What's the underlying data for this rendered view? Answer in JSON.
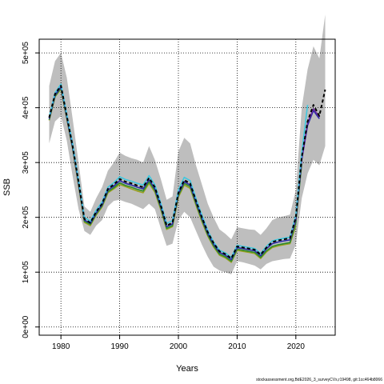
{
  "chart_data": {
    "type": "line",
    "xlabel": "Years",
    "ylabel": "SSB",
    "xlim": [
      1976.3,
      2026.7
    ],
    "ylim": [
      -15000,
      525000
    ],
    "grid": true,
    "x_ticks": [
      1980,
      1990,
      2000,
      2010,
      2020
    ],
    "y_ticks": [
      0,
      100000,
      200000,
      300000,
      400000,
      500000
    ],
    "y_tick_labels": [
      "0e+00",
      "1e+05",
      "2e+05",
      "3e+05",
      "4e+05",
      "5e+05"
    ],
    "colors": {
      "band": "#bebebe",
      "black_dashed": "#000000",
      "blue": "#2a2aa8",
      "green": "#2e8b2e",
      "cyan": "#3ec8e0",
      "olive": "#9aa020",
      "red": "#cc2222",
      "purple": "#6a2aa0"
    },
    "band": {
      "x": [
        1978,
        1979,
        1980,
        1981,
        1982,
        1983,
        1984,
        1985,
        1986,
        1987,
        1988,
        1989,
        1990,
        1991,
        1992,
        1993,
        1994,
        1995,
        1996,
        1997,
        1998,
        1999,
        2000,
        2001,
        2002,
        2003,
        2004,
        2005,
        2006,
        2007,
        2008,
        2009,
        2010,
        2011,
        2012,
        2013,
        2014,
        2015,
        2016,
        2017,
        2018,
        2019,
        2020,
        2021,
        2022,
        2023,
        2024,
        2025
      ],
      "upper": [
        440000,
        485000,
        500000,
        455000,
        380000,
        300000,
        220000,
        210000,
        235000,
        255000,
        285000,
        300000,
        318000,
        312000,
        308000,
        305000,
        300000,
        330000,
        305000,
        270000,
        232000,
        238000,
        320000,
        345000,
        335000,
        295000,
        260000,
        225000,
        200000,
        178000,
        170000,
        160000,
        182000,
        180000,
        178000,
        177000,
        168000,
        180000,
        195000,
        200000,
        202000,
        205000,
        250000,
        400000,
        470000,
        512000,
        490000,
        570000
      ],
      "lower": [
        335000,
        375000,
        385000,
        340000,
        275000,
        215000,
        175000,
        168000,
        185000,
        195000,
        220000,
        230000,
        232000,
        228000,
        225000,
        220000,
        215000,
        225000,
        215000,
        180000,
        148000,
        152000,
        195000,
        210000,
        200000,
        175000,
        150000,
        128000,
        110000,
        103000,
        100000,
        96000,
        120000,
        118000,
        115000,
        112000,
        105000,
        115000,
        120000,
        122000,
        124000,
        125000,
        150000,
        235000,
        280000,
        305000,
        295000,
        330000
      ]
    },
    "series": [
      {
        "name": "",
        "color": "#000000",
        "dashed": true,
        "x": [
          1978,
          1979,
          1980,
          1981,
          1982,
          1983,
          1984,
          1985,
          1986,
          1987,
          1988,
          1989,
          1990,
          1991,
          1992,
          1993,
          1994,
          1995,
          1996,
          1997,
          1998,
          1999,
          2000,
          2001,
          2002,
          2003,
          2004,
          2005,
          2006,
          2007,
          2008,
          2009,
          2010,
          2011,
          2012,
          2013,
          2014,
          2015,
          2016,
          2017,
          2018,
          2019,
          2020,
          2021,
          2022,
          2023,
          2024,
          2025
        ],
        "y": [
          382000,
          425000,
          440000,
          385000,
          330000,
          265000,
          197000,
          190000,
          210000,
          225000,
          252000,
          260000,
          270000,
          265000,
          262000,
          258000,
          255000,
          272000,
          255000,
          222000,
          185000,
          190000,
          245000,
          268000,
          262000,
          230000,
          200000,
          173000,
          153000,
          138000,
          133000,
          125000,
          147000,
          145000,
          143000,
          141000,
          132000,
          145000,
          155000,
          158000,
          160000,
          162000,
          200000,
          310000,
          375000,
          405000,
          385000,
          433000
        ]
      },
      {
        "name": "",
        "color": "#2a2aa8",
        "dashed": false,
        "x": [
          1978,
          1979,
          1980,
          1981,
          1982,
          1983,
          1984,
          1985,
          1986,
          1987,
          1988,
          1989,
          1990,
          1991,
          1992,
          1993,
          1994,
          1995,
          1996,
          1997,
          1998,
          1999,
          2000,
          2001,
          2002,
          2003,
          2004,
          2005,
          2006,
          2007,
          2008,
          2009,
          2010,
          2011,
          2012,
          2013,
          2014,
          2015,
          2016,
          2017,
          2018,
          2019,
          2020,
          2021,
          2022,
          2023,
          2024
        ],
        "y": [
          380000,
          423000,
          438000,
          383000,
          328000,
          262000,
          195000,
          189000,
          208000,
          223000,
          250000,
          257000,
          267000,
          262000,
          259000,
          255000,
          252000,
          269000,
          252000,
          220000,
          183000,
          188000,
          243000,
          265000,
          259000,
          228000,
          198000,
          171000,
          151000,
          136000,
          131000,
          123000,
          145000,
          143000,
          141000,
          139000,
          130000,
          143000,
          152000,
          155000,
          157000,
          159000,
          196000,
          305000,
          368000,
          395000,
          380000
        ]
      },
      {
        "name": "",
        "color": "#2e8b2e",
        "dashed": false,
        "x": [
          1978,
          1979,
          1980,
          1981,
          1982,
          1983,
          1984,
          1985,
          1986,
          1987,
          1988,
          1989,
          1990,
          1991,
          1992,
          1993,
          1994,
          1995,
          1996,
          1997,
          1998,
          1999,
          2000,
          2001,
          2002,
          2003,
          2004,
          2005,
          2006,
          2007,
          2008,
          2009,
          2010,
          2011,
          2012,
          2013,
          2014,
          2015,
          2016,
          2017,
          2018,
          2019,
          2020,
          2021
        ],
        "y": [
          378000,
          421000,
          436000,
          381000,
          326000,
          260000,
          193000,
          187000,
          206000,
          221000,
          247000,
          254000,
          263000,
          258000,
          255000,
          251000,
          248000,
          265000,
          249000,
          217000,
          180000,
          185000,
          240000,
          262000,
          256000,
          225000,
          195000,
          168000,
          148000,
          133000,
          128000,
          120000,
          142000,
          140000,
          138000,
          136000,
          127000,
          139000,
          147000,
          150000,
          152000,
          154000,
          190000,
          298000
        ]
      },
      {
        "name": "",
        "color": "#3ec8e0",
        "dashed": false,
        "x": [
          1978,
          1979,
          1980,
          1981,
          1982,
          1983,
          1984,
          1985,
          1986,
          1987,
          1988,
          1989,
          1990,
          1991,
          1992,
          1993,
          1994,
          1995,
          1996,
          1997,
          1998,
          1999,
          2000,
          2001,
          2002,
          2003,
          2004,
          2005,
          2006,
          2007,
          2008,
          2009,
          2010,
          2011,
          2012,
          2013,
          2014,
          2015,
          2016,
          2017,
          2018,
          2019,
          2020,
          2021,
          2022
        ],
        "y": [
          383000,
          427000,
          443000,
          388000,
          334000,
          268000,
          200000,
          193000,
          213000,
          228000,
          255000,
          263000,
          274000,
          269000,
          266000,
          262000,
          259000,
          276000,
          259000,
          226000,
          189000,
          194000,
          250000,
          273000,
          267000,
          234000,
          204000,
          176000,
          155000,
          140000,
          135000,
          127000,
          149000,
          147000,
          145000,
          143000,
          134000,
          147000,
          157000,
          160000,
          162000,
          164000,
          204000,
          318000,
          405000
        ]
      },
      {
        "name": "",
        "color": "#9aa020",
        "dashed": false,
        "x": [
          1978,
          1979,
          1980,
          1981,
          1982,
          1983,
          1984,
          1985,
          1986,
          1987,
          1988,
          1989,
          1990,
          1991,
          1992,
          1993,
          1994,
          1995,
          1996,
          1997,
          1998,
          1999,
          2000,
          2001,
          2002,
          2003,
          2004,
          2005,
          2006,
          2007,
          2008,
          2009,
          2010,
          2011,
          2012,
          2013,
          2014,
          2015,
          2016,
          2017,
          2018,
          2019,
          2020
        ],
        "y": [
          377000,
          420000,
          434000,
          380000,
          325000,
          258000,
          191000,
          185000,
          204000,
          219000,
          245000,
          252000,
          260000,
          256000,
          252000,
          248000,
          245000,
          262000,
          246000,
          214000,
          178000,
          183000,
          237000,
          259000,
          253000,
          222000,
          192000,
          166000,
          146000,
          131000,
          126000,
          118000,
          140000,
          138000,
          136000,
          134000,
          125000,
          137000,
          145000,
          148000,
          150000,
          152000,
          185000
        ]
      },
      {
        "name": "",
        "color": "#6a2aa0",
        "dashed": false,
        "x": [
          2019,
          2020,
          2021,
          2022,
          2023,
          2024
        ],
        "y": [
          160000,
          198000,
          308000,
          372000,
          398000,
          383000
        ]
      }
    ],
    "credit": "stockassessment.org,BdE2026_3_surveyCVs,r19498, git:1cc464b8066"
  }
}
